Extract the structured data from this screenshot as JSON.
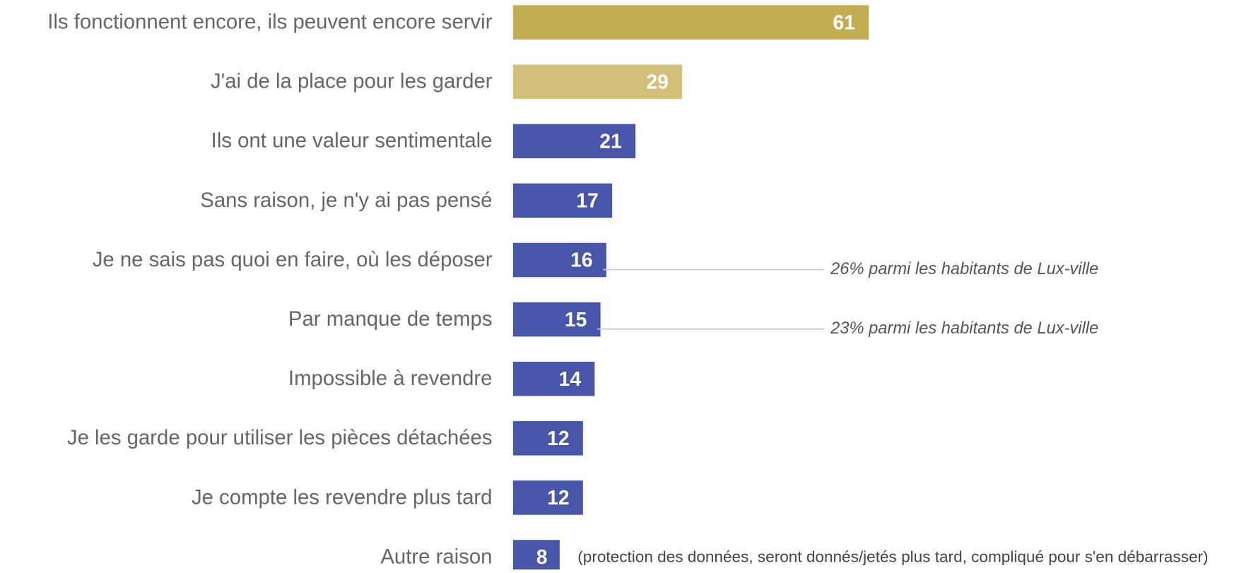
{
  "chart_data": {
    "type": "bar",
    "orientation": "horizontal",
    "categories": [
      "Ils fonctionnent encore, ils peuvent encore servir",
      "J'ai de la place pour les garder",
      "Ils ont une valeur sentimentale",
      "Sans raison, je n'y ai pas pensé",
      "Je ne sais pas quoi en faire, où les déposer",
      "Par manque de temps",
      "Impossible à revendre",
      "Je les garde pour utiliser les pièces détachées",
      "Je compte les revendre plus tard",
      "Autre raison"
    ],
    "values": [
      61,
      29,
      21,
      17,
      16,
      15,
      14,
      12,
      12,
      8
    ],
    "colors": [
      "#c3ad52",
      "#d2bf78",
      "#4756a8",
      "#4756a8",
      "#4756a8",
      "#4756a8",
      "#4756a8",
      "#4756a8",
      "#4756a8",
      "#4756a8"
    ],
    "annotations": [
      "26% parmi les habitants de Lux-ville",
      "23% parmi les habitants de Lux-ville",
      "(protection des données, seront donnés/jetés plus tard, compliqué pour s'en débarrasser)"
    ]
  }
}
